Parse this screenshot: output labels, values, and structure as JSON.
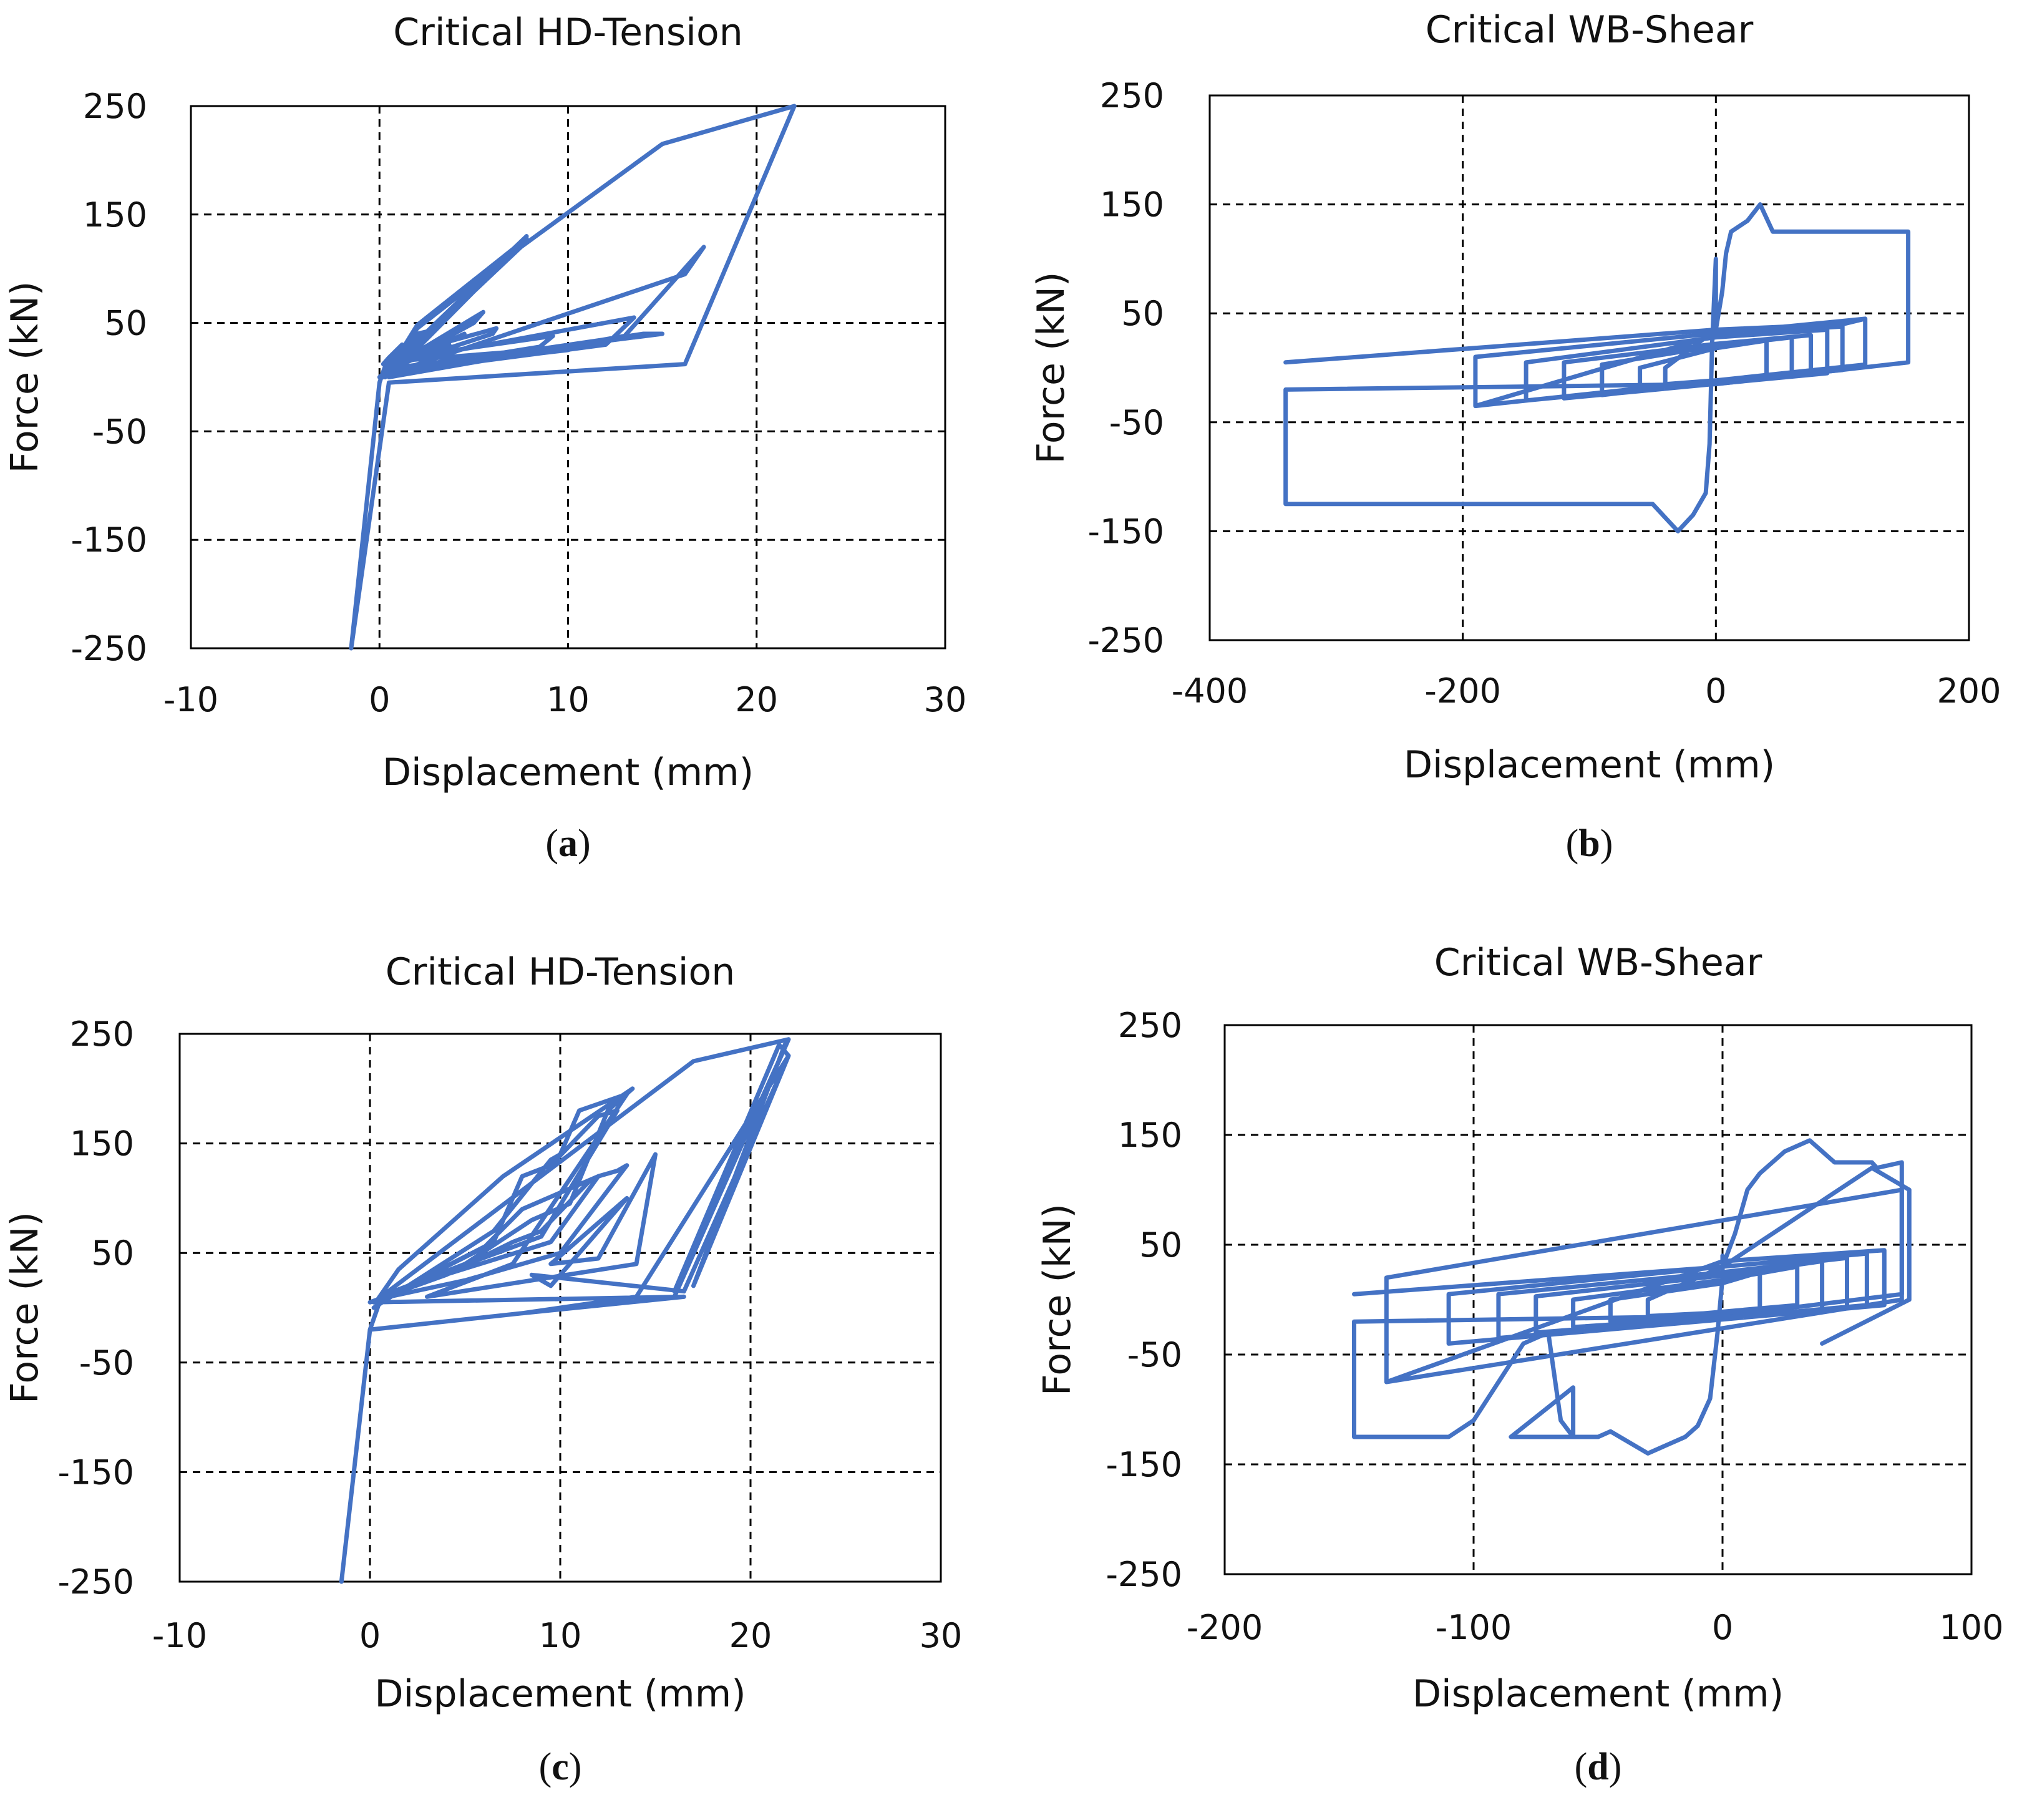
{
  "figure": {
    "panel_labels": [
      "(",
      "a",
      ")",
      "(",
      "b",
      ")",
      "(",
      "c",
      ")",
      "(",
      "d",
      ")"
    ]
  },
  "colors": {
    "series": "#4472C4",
    "grid": "#000000",
    "axis": "#000000",
    "text": "#111111"
  },
  "chart_data": [
    {
      "id": "a",
      "type": "line",
      "title": "Critical HD-Tension",
      "xlabel": "Displacement (mm)",
      "ylabel": "Force (kN)",
      "panel_label": "a",
      "xlim": [
        -10,
        30
      ],
      "ylim": [
        -250,
        250
      ],
      "xticks": [
        -10,
        0,
        10,
        20,
        30
      ],
      "yticks": [
        250,
        150,
        50,
        -50,
        -150,
        -250
      ],
      "xtick_labels": [
        "-10",
        "0",
        "10",
        "20",
        "30"
      ],
      "ytick_labels": [
        "250",
        "150",
        "50",
        "-50",
        "-150",
        "-250"
      ],
      "grid": "dashed",
      "legend": "none",
      "series": [
        {
          "x": [
            -1.5,
            0,
            0.3,
            1.2,
            0.5,
            0.2,
            2.0,
            2.5,
            0.5,
            0.3,
            3.0,
            3.7,
            0.8,
            0.4,
            4.0,
            4.5,
            1.0,
            0.6,
            5.0,
            5.5,
            1.2,
            0.7,
            6.0,
            6.2,
            1.0,
            0.5,
            7.5,
            7.8,
            1.5,
            0.3,
            8.5,
            9.2,
            2.0,
            0.2,
            10.0,
            10.5,
            1.0,
            0.2,
            12.0,
            13.5,
            2.0,
            0.3,
            14.0,
            15.0,
            0.5,
            0,
            16.2,
            17.2,
            13.0,
            0.5,
            7.8,
            2.0,
            0.3,
            7.8,
            7.5,
            2.0,
            0.2,
            7.5,
            15.0,
            22.0,
            16.2,
            0.5,
            -1.5
          ],
          "y": [
            -250,
            -5,
            10,
            30,
            18,
            12,
            40,
            42,
            15,
            10,
            28,
            30,
            12,
            8,
            35,
            40,
            12,
            8,
            50,
            60,
            15,
            10,
            40,
            45,
            20,
            10,
            120,
            130,
            25,
            5,
            28,
            38,
            20,
            5,
            25,
            28,
            15,
            3,
            30,
            55,
            18,
            5,
            40,
            40,
            8,
            0,
            95,
            120,
            38,
            0,
            128,
            48,
            0,
            128,
            120,
            45,
            0,
            120,
            215,
            250,
            12,
            -5,
            -250
          ]
        }
      ]
    },
    {
      "id": "b",
      "type": "line",
      "title": "Critical WB-Shear",
      "xlabel": "Displacement (mm)",
      "ylabel": "Force (kN)",
      "panel_label": "b",
      "xlim": [
        -400,
        200
      ],
      "ylim": [
        -250,
        250
      ],
      "xticks": [
        -400,
        -200,
        0,
        200
      ],
      "yticks": [
        250,
        150,
        50,
        -50,
        -150,
        -250
      ],
      "xtick_labels": [
        "-400",
        "-200",
        "0",
        "200"
      ],
      "ytick_labels": [
        "250",
        "150",
        "50",
        "-50",
        "-150",
        "-250"
      ],
      "grid": "dashed",
      "legend": "none",
      "series": [
        {
          "x": [
            -340,
            0,
            5,
            8,
            12,
            25,
            35,
            45,
            152,
            152,
            0,
            -340,
            -340,
            -50,
            -30,
            -18,
            -8,
            -5,
            -3,
            0,
            0
          ],
          "y": [
            5,
            35,
            70,
            105,
            125,
            135,
            150,
            125,
            125,
            5,
            -15,
            -20,
            -125,
            -125,
            -150,
            -135,
            -115,
            -70,
            20,
            100,
            40
          ]
        },
        {
          "x": [
            -190,
            118,
            118,
            -190,
            -190,
            0,
            100,
            100,
            -150,
            -150,
            0,
            88,
            88,
            -120,
            -120,
            0,
            75,
            75,
            -90,
            -90,
            0,
            60,
            60,
            -60,
            -60,
            0,
            40,
            40,
            -40,
            -40,
            0,
            100,
            118
          ],
          "y": [
            -35,
            3,
            45,
            10,
            -35,
            30,
            38,
            -2,
            -30,
            5,
            28,
            35,
            -5,
            -28,
            5,
            22,
            30,
            -3,
            -25,
            3,
            20,
            28,
            -5,
            -20,
            0,
            18,
            25,
            -8,
            -15,
            0,
            35,
            40,
            45
          ]
        }
      ]
    },
    {
      "id": "c",
      "type": "line",
      "title": "Critical HD-Tension",
      "xlabel": "Displacement (mm)",
      "ylabel": "Force (kN)",
      "panel_label": "c",
      "xlim": [
        -10,
        30
      ],
      "ylim": [
        -250,
        250
      ],
      "xticks": [
        -10,
        0,
        10,
        20,
        30
      ],
      "yticks": [
        250,
        150,
        50,
        -50,
        -150,
        -250
      ],
      "xtick_labels": [
        "-10",
        "0",
        "10",
        "20",
        "30"
      ],
      "ytick_labels": [
        "250",
        "150",
        "50",
        "-50",
        "-150",
        "-250"
      ],
      "grid": "dashed",
      "legend": "none",
      "series": [
        {
          "x": [
            -1.5,
            0,
            0.5,
            2.0,
            6.0,
            8.0,
            10.0,
            12.0,
            13.0,
            13.5,
            10.0,
            5.0,
            1.0,
            0,
            4.0,
            7.5,
            9.0,
            11.5,
            12.0,
            9.5,
            3.0,
            0.5,
            5.0,
            8.5,
            10.5,
            12.5,
            13.8,
            7.0,
            1.5,
            0.3,
            6.5,
            8.0,
            9.5,
            12.0,
            13.0,
            9.0,
            2.0,
            0.2,
            6.5,
            9.5,
            10.0,
            11.0,
            13.5,
            7.5,
            3.0,
            14.0,
            15.0,
            12.0,
            9.5,
            13.5,
            12.0,
            9.5,
            8.5,
            16.5,
            22.0,
            21.5,
            16.0,
            22.0,
            21.8,
            17.0,
            22.0,
            14.0,
            8.0,
            16.5,
            0.2,
            17.0,
            22.0,
            16.0,
            0,
            -1.5
          ],
          "y": [
            -250,
            -20,
            5,
            20,
            55,
            90,
            105,
            120,
            125,
            130,
            50,
            25,
            10,
            5,
            30,
            60,
            70,
            115,
            120,
            60,
            25,
            10,
            40,
            80,
            95,
            180,
            200,
            120,
            35,
            5,
            60,
            120,
            130,
            175,
            180,
            65,
            20,
            0,
            70,
            135,
            140,
            180,
            195,
            40,
            10,
            40,
            140,
            45,
            40,
            100,
            70,
            20,
            30,
            15,
            230,
            240,
            15,
            245,
            240,
            20,
            230,
            10,
            -5,
            10,
            5,
            225,
            245,
            10,
            -20,
            -250
          ]
        }
      ]
    },
    {
      "id": "d",
      "type": "line",
      "title": "Critical WB-Shear",
      "xlabel": "Displacement (mm)",
      "ylabel": "Force (kN)",
      "panel_label": "d",
      "xlim": [
        -200,
        100
      ],
      "ylim": [
        -250,
        250
      ],
      "xticks": [
        -200,
        -100,
        0,
        100
      ],
      "yticks": [
        250,
        150,
        50,
        -50,
        -150,
        -250
      ],
      "xtick_labels": [
        "-200",
        "-100",
        "0",
        "100"
      ],
      "ytick_labels": [
        "250",
        "150",
        "50",
        "-50",
        "-150",
        "-250"
      ],
      "grid": "dashed",
      "legend": "none",
      "series": [
        {
          "x": [
            -148,
            0,
            5,
            10,
            15,
            25,
            35,
            45,
            60,
            62,
            72,
            72,
            0,
            -148,
            -148,
            -110,
            -100,
            -80,
            -70,
            -65,
            -60,
            -60,
            -85,
            -85,
            -50,
            -45,
            -30,
            -15,
            -10,
            -5,
            -2,
            0,
            0
          ],
          "y": [
            5,
            30,
            60,
            100,
            115,
            135,
            145,
            125,
            125,
            120,
            125,
            5,
            -15,
            -20,
            -125,
            -125,
            -110,
            -40,
            -30,
            -110,
            -125,
            -80,
            -125,
            -125,
            -125,
            -120,
            -140,
            -125,
            -115,
            -90,
            -30,
            20,
            40
          ]
        },
        {
          "x": [
            -135,
            72,
            72,
            -135,
            -135,
            0,
            65,
            65,
            -110,
            -110,
            0,
            58,
            58,
            -90,
            -90,
            0,
            50,
            50,
            -75,
            -75,
            0,
            40,
            40,
            -60,
            -60,
            0,
            30,
            30,
            -45,
            -45,
            0,
            15,
            15,
            -30,
            -30,
            0,
            60,
            75,
            75,
            40
          ],
          "y": [
            -75,
            0,
            100,
            20,
            -75,
            35,
            45,
            -5,
            -40,
            5,
            30,
            42,
            -5,
            -35,
            5,
            25,
            38,
            -8,
            -30,
            3,
            22,
            35,
            -10,
            -25,
            0,
            18,
            30,
            -5,
            -20,
            0,
            15,
            25,
            -10,
            -15,
            0,
            30,
            120,
            100,
            0,
            -40
          ]
        }
      ]
    }
  ]
}
